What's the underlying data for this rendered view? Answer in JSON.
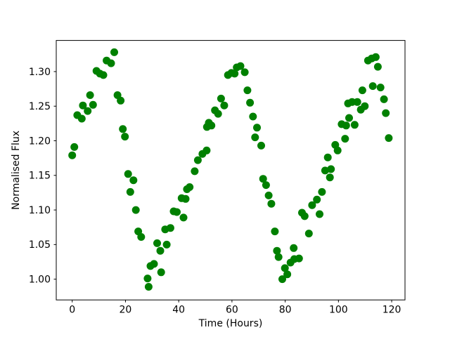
{
  "figure": {
    "background": "#ffffff",
    "axes_background": "#ffffff",
    "spine_color": "#000000",
    "tick_color": "#000000"
  },
  "chart_data": {
    "type": "scatter",
    "title": "",
    "xlabel": "Time (Hours)",
    "ylabel": "Normalised Flux",
    "marker_color": "#008000",
    "marker_shape": "circle",
    "grid": false,
    "legend": false,
    "xlim": [
      -6,
      125
    ],
    "ylim": [
      0.97,
      1.345
    ],
    "xticks": [
      0,
      20,
      40,
      60,
      80,
      100,
      120
    ],
    "xtick_labels": [
      "0",
      "20",
      "40",
      "60",
      "80",
      "100",
      "120"
    ],
    "yticks": [
      1.0,
      1.05,
      1.1,
      1.15,
      1.2,
      1.25,
      1.3
    ],
    "ytick_labels": [
      "1.00",
      "1.05",
      "1.10",
      "1.15",
      "1.20",
      "1.25",
      "1.30"
    ],
    "points": [
      [
        0.0,
        1.179
      ],
      [
        0.8,
        1.191
      ],
      [
        1.9,
        1.237
      ],
      [
        3.6,
        1.232
      ],
      [
        4.0,
        1.251
      ],
      [
        5.8,
        1.243
      ],
      [
        6.7,
        1.266
      ],
      [
        7.8,
        1.252
      ],
      [
        9.1,
        1.301
      ],
      [
        10.4,
        1.297
      ],
      [
        11.7,
        1.295
      ],
      [
        12.9,
        1.316
      ],
      [
        14.6,
        1.312
      ],
      [
        15.8,
        1.328
      ],
      [
        17.0,
        1.266
      ],
      [
        18.2,
        1.258
      ],
      [
        19.0,
        1.217
      ],
      [
        19.8,
        1.206
      ],
      [
        21.0,
        1.152
      ],
      [
        21.8,
        1.126
      ],
      [
        23.0,
        1.143
      ],
      [
        23.9,
        1.1
      ],
      [
        24.8,
        1.069
      ],
      [
        25.9,
        1.061
      ],
      [
        28.3,
        1.001
      ],
      [
        28.7,
        0.989
      ],
      [
        29.4,
        1.019
      ],
      [
        30.7,
        1.022
      ],
      [
        31.9,
        1.052
      ],
      [
        33.1,
        1.041
      ],
      [
        33.4,
        1.01
      ],
      [
        34.9,
        1.072
      ],
      [
        35.5,
        1.05
      ],
      [
        36.9,
        1.074
      ],
      [
        38.1,
        1.098
      ],
      [
        39.3,
        1.097
      ],
      [
        41.1,
        1.117
      ],
      [
        41.8,
        1.089
      ],
      [
        42.6,
        1.116
      ],
      [
        43.1,
        1.13
      ],
      [
        44.1,
        1.133
      ],
      [
        46.0,
        1.156
      ],
      [
        47.2,
        1.172
      ],
      [
        48.9,
        1.181
      ],
      [
        50.5,
        1.186
      ],
      [
        50.6,
        1.22
      ],
      [
        51.3,
        1.226
      ],
      [
        52.3,
        1.222
      ],
      [
        53.6,
        1.244
      ],
      [
        54.8,
        1.239
      ],
      [
        55.9,
        1.261
      ],
      [
        57.1,
        1.251
      ],
      [
        58.5,
        1.295
      ],
      [
        59.8,
        1.298
      ],
      [
        61.0,
        1.297
      ],
      [
        61.8,
        1.306
      ],
      [
        63.2,
        1.308
      ],
      [
        64.8,
        1.299
      ],
      [
        65.8,
        1.273
      ],
      [
        66.8,
        1.255
      ],
      [
        67.9,
        1.235
      ],
      [
        68.7,
        1.205
      ],
      [
        69.4,
        1.219
      ],
      [
        71.0,
        1.193
      ],
      [
        71.7,
        1.145
      ],
      [
        72.8,
        1.136
      ],
      [
        73.8,
        1.121
      ],
      [
        74.8,
        1.109
      ],
      [
        76.1,
        1.069
      ],
      [
        76.9,
        1.041
      ],
      [
        77.5,
        1.032
      ],
      [
        78.9,
        1.0
      ],
      [
        79.9,
        1.016
      ],
      [
        80.8,
        1.007
      ],
      [
        82.0,
        1.024
      ],
      [
        83.2,
        1.045
      ],
      [
        83.4,
        1.029
      ],
      [
        85.2,
        1.03
      ],
      [
        86.3,
        1.096
      ],
      [
        87.3,
        1.091
      ],
      [
        88.9,
        1.066
      ],
      [
        90.1,
        1.107
      ],
      [
        91.9,
        1.115
      ],
      [
        92.9,
        1.094
      ],
      [
        93.8,
        1.126
      ],
      [
        95.0,
        1.157
      ],
      [
        96.0,
        1.176
      ],
      [
        96.8,
        1.147
      ],
      [
        97.2,
        1.159
      ],
      [
        98.8,
        1.194
      ],
      [
        99.7,
        1.186
      ],
      [
        101.2,
        1.224
      ],
      [
        102.5,
        1.203
      ],
      [
        102.9,
        1.222
      ],
      [
        103.6,
        1.254
      ],
      [
        104.0,
        1.233
      ],
      [
        105.1,
        1.256
      ],
      [
        106.1,
        1.223
      ],
      [
        107.1,
        1.256
      ],
      [
        108.4,
        1.245
      ],
      [
        109.0,
        1.273
      ],
      [
        109.9,
        1.25
      ],
      [
        111.1,
        1.316
      ],
      [
        112.5,
        1.319
      ],
      [
        112.9,
        1.279
      ],
      [
        114.0,
        1.321
      ],
      [
        114.8,
        1.307
      ],
      [
        115.8,
        1.277
      ],
      [
        117.1,
        1.26
      ],
      [
        117.8,
        1.24
      ],
      [
        118.9,
        1.204
      ]
    ]
  }
}
